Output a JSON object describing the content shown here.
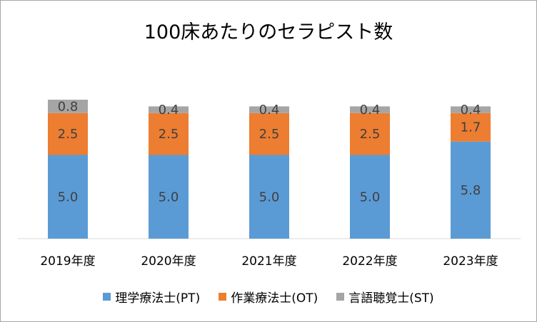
{
  "chart_data": {
    "type": "bar",
    "stacked": true,
    "title": "100床あたりのセラピスト数",
    "categories": [
      "2019年度",
      "2020年度",
      "2021年度",
      "2022年度",
      "2023年度"
    ],
    "series": [
      {
        "name": "理学療法士(PT)",
        "color": "#5b9bd5",
        "values": [
          5.0,
          5.0,
          5.0,
          5.0,
          5.8
        ],
        "labels": [
          "5.0",
          "5.0",
          "5.0",
          "5.0",
          "5.8"
        ]
      },
      {
        "name": "作業療法士(OT)",
        "color": "#ed7d31",
        "values": [
          2.5,
          2.5,
          2.5,
          2.5,
          1.7
        ],
        "labels": [
          "2.5",
          "2.5",
          "2.5",
          "2.5",
          "1.7"
        ]
      },
      {
        "name": "言語聴覚士(ST)",
        "color": "#a5a5a5",
        "values": [
          0.8,
          0.4,
          0.4,
          0.4,
          0.4
        ],
        "labels": [
          "0.8",
          "0.4",
          "0.4",
          "0.4",
          "0.4"
        ]
      }
    ],
    "ylim": [
      0,
      10
    ],
    "grid": false,
    "legend": "bottom"
  }
}
